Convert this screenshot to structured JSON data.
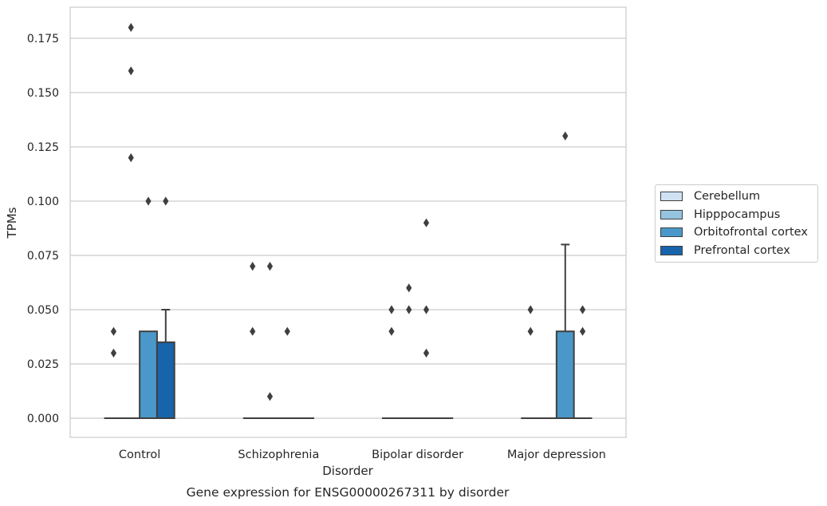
{
  "chart_data": {
    "type": "box",
    "title": "Gene expression for ENSG00000267311 by disorder",
    "xlabel": "Disorder",
    "ylabel": "TPMs",
    "ylim": [
      -0.009,
      0.189
    ],
    "yticks": [
      "0.000",
      "0.025",
      "0.050",
      "0.075",
      "0.100",
      "0.125",
      "0.150",
      "0.175"
    ],
    "ytick_values": [
      0,
      0.025,
      0.05,
      0.075,
      0.1,
      0.125,
      0.15,
      0.175
    ],
    "grid": "horizontal",
    "legend_placement": "right",
    "categories": [
      "Control",
      "Schizophrenia",
      "Bipolar disorder",
      "Major depression"
    ],
    "series": [
      {
        "name": "Cerebellum",
        "color": "#d0e1f2",
        "boxes": [
          {
            "category": "Control",
            "q1": 0,
            "median": 0,
            "q3": 0,
            "whisker_low": 0,
            "whisker_high": 0,
            "outliers": [
              0.03,
              0.04
            ]
          },
          {
            "category": "Schizophrenia",
            "q1": 0,
            "median": 0,
            "q3": 0,
            "whisker_low": 0,
            "whisker_high": 0,
            "outliers": [
              0.04,
              0.07
            ]
          },
          {
            "category": "Bipolar disorder",
            "q1": 0,
            "median": 0,
            "q3": 0,
            "whisker_low": 0,
            "whisker_high": 0,
            "outliers": [
              0.04,
              0.05
            ]
          },
          {
            "category": "Major depression",
            "q1": 0,
            "median": 0,
            "q3": 0,
            "whisker_low": 0,
            "whisker_high": 0,
            "outliers": [
              0.04,
              0.05
            ]
          }
        ]
      },
      {
        "name": "Hipppocampus",
        "color": "#94c4df",
        "boxes": [
          {
            "category": "Control",
            "q1": 0,
            "median": 0,
            "q3": 0,
            "whisker_low": 0,
            "whisker_high": 0,
            "outliers": [
              0.12,
              0.16,
              0.18
            ]
          },
          {
            "category": "Schizophrenia",
            "q1": 0,
            "median": 0,
            "q3": 0,
            "whisker_low": 0,
            "whisker_high": 0,
            "outliers": [
              0.01,
              0.07
            ]
          },
          {
            "category": "Bipolar disorder",
            "q1": 0,
            "median": 0,
            "q3": 0,
            "whisker_low": 0,
            "whisker_high": 0,
            "outliers": [
              0.05,
              0.06
            ]
          },
          {
            "category": "Major depression",
            "q1": 0,
            "median": 0,
            "q3": 0,
            "whisker_low": 0,
            "whisker_high": 0,
            "outliers": []
          }
        ]
      },
      {
        "name": "Orbitofrontal cortex",
        "color": "#4a98c9",
        "boxes": [
          {
            "category": "Control",
            "q1": 0,
            "median": 0,
            "q3": 0.04,
            "whisker_low": 0,
            "whisker_high": 0.04,
            "outliers": [
              0.1
            ]
          },
          {
            "category": "Schizophrenia",
            "q1": 0,
            "median": 0,
            "q3": 0,
            "whisker_low": 0,
            "whisker_high": 0,
            "outliers": [
              0.04
            ]
          },
          {
            "category": "Bipolar disorder",
            "q1": 0,
            "median": 0,
            "q3": 0,
            "whisker_low": 0,
            "whisker_high": 0,
            "outliers": [
              0.03,
              0.05,
              0.09
            ]
          },
          {
            "category": "Major depression",
            "q1": 0,
            "median": 0,
            "q3": 0.04,
            "whisker_low": 0,
            "whisker_high": 0.08,
            "outliers": [
              0.13
            ]
          }
        ]
      },
      {
        "name": "Prefrontal cortex",
        "color": "#1764ab",
        "boxes": [
          {
            "category": "Control",
            "q1": 0,
            "median": 0,
            "q3": 0.035,
            "whisker_low": 0,
            "whisker_high": 0.05,
            "outliers": [
              0.1
            ]
          },
          {
            "category": "Schizophrenia",
            "q1": 0,
            "median": 0,
            "q3": 0,
            "whisker_low": 0,
            "whisker_high": 0,
            "outliers": []
          },
          {
            "category": "Bipolar disorder",
            "q1": 0,
            "median": 0,
            "q3": 0,
            "whisker_low": 0,
            "whisker_high": 0,
            "outliers": []
          },
          {
            "category": "Major depression",
            "q1": 0,
            "median": 0,
            "q3": 0,
            "whisker_low": 0,
            "whisker_high": 0,
            "outliers": [
              0.04,
              0.05
            ]
          }
        ]
      }
    ]
  }
}
